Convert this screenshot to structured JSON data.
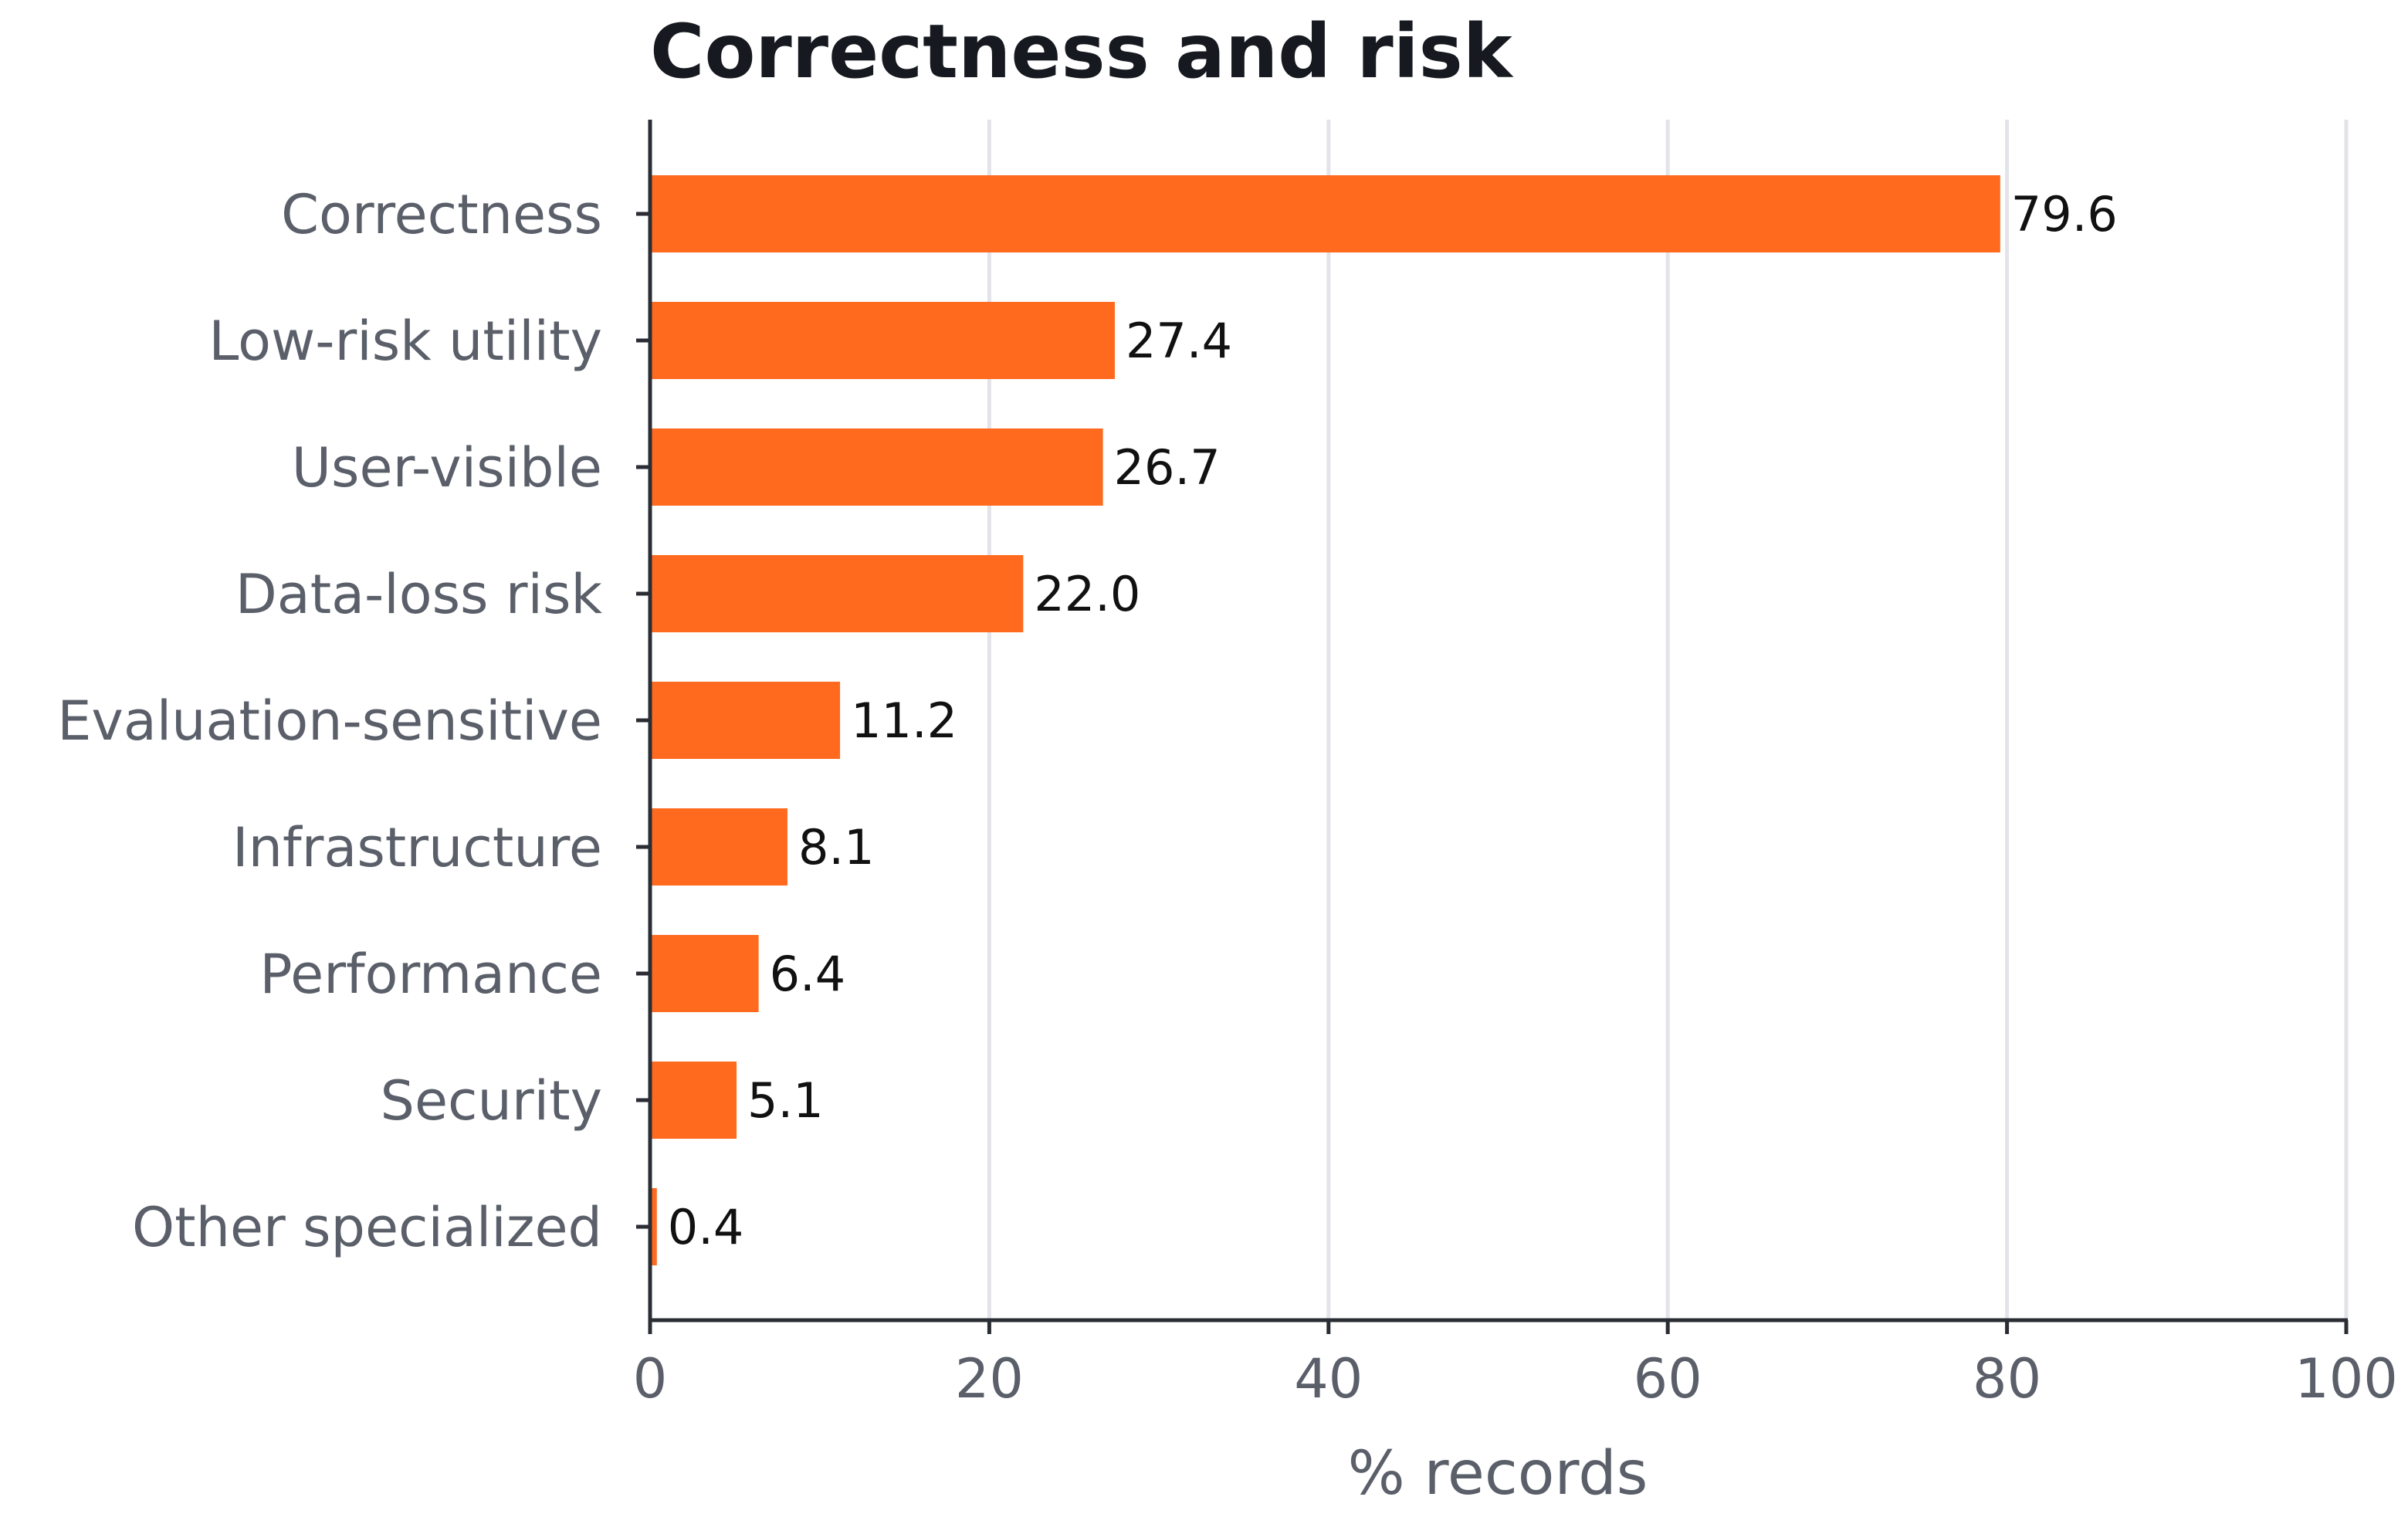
{
  "chart_data": {
    "type": "bar",
    "orientation": "horizontal",
    "title": "Correctness and risk",
    "xlabel": "% records",
    "ylabel": "",
    "xlim": [
      0,
      100
    ],
    "xticks": [
      0,
      20,
      40,
      60,
      80,
      100
    ],
    "grid": "vertical",
    "bar_color": "#ff6a1f",
    "grid_color": "#e3e3ea",
    "axis_color": "#2a2d33",
    "categories": [
      "Correctness",
      "Low-risk utility",
      "User-visible",
      "Data-loss risk",
      "Evaluation-sensitive",
      "Infrastructure",
      "Performance",
      "Security",
      "Other specialized"
    ],
    "values": [
      79.6,
      27.4,
      26.7,
      22.0,
      11.2,
      8.1,
      6.4,
      5.1,
      0.4
    ],
    "value_labels": [
      "79.6",
      "27.4",
      "26.7",
      "22.0",
      "11.2",
      "8.1",
      "6.4",
      "5.1",
      "0.4"
    ]
  }
}
